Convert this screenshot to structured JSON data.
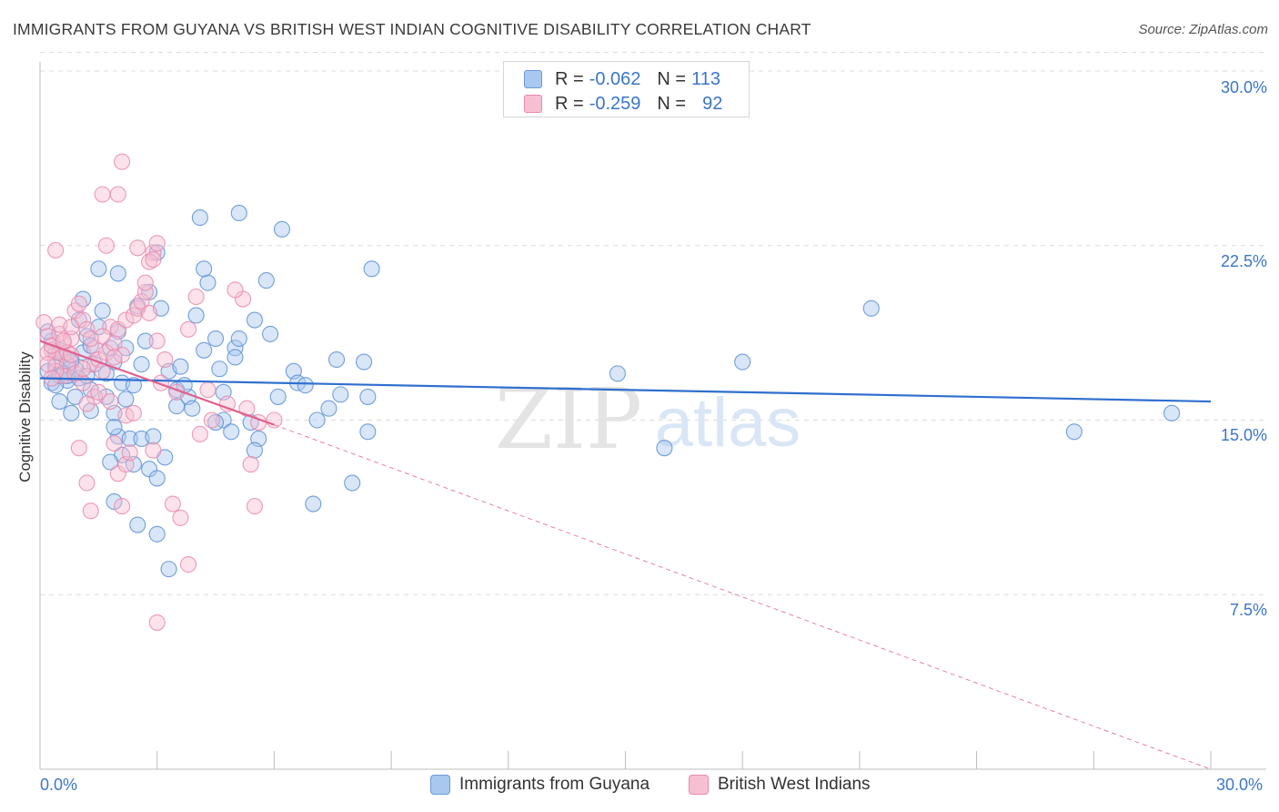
{
  "title": "IMMIGRANTS FROM GUYANA VS BRITISH WEST INDIAN COGNITIVE DISABILITY CORRELATION CHART",
  "source": "Source: ZipAtlas.com",
  "watermark": {
    "zip": "ZIP",
    "atlas": "atlas"
  },
  "legend": {
    "r_label": "R =",
    "n_label": "N =",
    "rows": [
      {
        "r": "-0.062",
        "n": "113",
        "color": "#a8c8f0",
        "border": "#6a9ad8"
      },
      {
        "r": "-0.259",
        "n": "92",
        "color": "#f7bfd2",
        "border": "#e88aab"
      }
    ]
  },
  "bottom_legend": [
    {
      "label": "Immigrants from Guyana",
      "color": "#a8c8f0",
      "border": "#6a9ad8"
    },
    {
      "label": "British West Indians",
      "color": "#f7bfd2",
      "border": "#e88aab"
    }
  ],
  "axes": {
    "ylabel": "Cognitive Disability",
    "y_ticks": [
      "30.0%",
      "22.5%",
      "15.0%",
      "7.5%"
    ],
    "x_min_label": "0.0%",
    "x_max_label": "30.0%"
  },
  "chart_data": {
    "type": "scatter",
    "title": "IMMIGRANTS FROM GUYANA VS BRITISH WEST INDIAN COGNITIVE DISABILITY CORRELATION CHART",
    "xlabel": "",
    "ylabel": "Cognitive Disability",
    "xlim": [
      0,
      30
    ],
    "ylim": [
      0,
      30
    ],
    "y_ticks": [
      7.5,
      15.0,
      22.5,
      30.0
    ],
    "colors": {
      "blue_fill": "#a8c8f0",
      "blue_stroke": "#5b8fd6",
      "blue_line": "#2f6fcf",
      "pink_fill": "#f7bfd2",
      "pink_stroke": "#e98aac",
      "pink_line": "#e0608d"
    },
    "series": [
      {
        "name": "Immigrants from Guyana",
        "r": -0.062,
        "n": 113,
        "trend": {
          "x": [
            0,
            30
          ],
          "y": [
            16.8,
            15.8
          ]
        },
        "points": [
          [
            0.2,
            17.1
          ],
          [
            0.3,
            16.6
          ],
          [
            0.4,
            17.3
          ],
          [
            0.5,
            16.9
          ],
          [
            0.6,
            17.0
          ],
          [
            0.7,
            16.7
          ],
          [
            0.3,
            18.4
          ],
          [
            0.5,
            18.0
          ],
          [
            0.8,
            17.6
          ],
          [
            0.4,
            16.5
          ],
          [
            0.6,
            17.8
          ],
          [
            0.9,
            17.2
          ],
          [
            0.7,
            16.9
          ],
          [
            0.5,
            15.8
          ],
          [
            0.8,
            15.3
          ],
          [
            1.0,
            16.8
          ],
          [
            1.1,
            17.9
          ],
          [
            1.2,
            18.6
          ],
          [
            1.3,
            16.3
          ],
          [
            1.0,
            19.3
          ],
          [
            1.4,
            17.4
          ],
          [
            1.5,
            19.0
          ],
          [
            1.1,
            20.2
          ],
          [
            1.5,
            21.5
          ],
          [
            1.7,
            17.0
          ],
          [
            1.8,
            18.1
          ],
          [
            1.6,
            19.7
          ],
          [
            2.0,
            18.8
          ],
          [
            1.9,
            17.5
          ],
          [
            2.1,
            16.6
          ],
          [
            2.2,
            18.1
          ],
          [
            2.5,
            19.9
          ],
          [
            2.8,
            20.5
          ],
          [
            2.7,
            18.4
          ],
          [
            2.4,
            16.5
          ],
          [
            1.3,
            15.4
          ],
          [
            1.7,
            16.0
          ],
          [
            1.9,
            15.3
          ],
          [
            2.0,
            14.3
          ],
          [
            1.9,
            14.7
          ],
          [
            2.3,
            14.2
          ],
          [
            2.6,
            14.2
          ],
          [
            2.8,
            12.9
          ],
          [
            3.2,
            13.4
          ],
          [
            3.0,
            12.5
          ],
          [
            3.3,
            17.1
          ],
          [
            3.5,
            16.3
          ],
          [
            3.6,
            17.3
          ],
          [
            3.8,
            16.0
          ],
          [
            3.9,
            15.5
          ],
          [
            3.1,
            19.8
          ],
          [
            4.0,
            19.5
          ],
          [
            4.2,
            18.0
          ],
          [
            4.5,
            18.5
          ],
          [
            4.6,
            17.2
          ],
          [
            4.3,
            20.9
          ],
          [
            4.1,
            23.7
          ],
          [
            4.2,
            21.5
          ],
          [
            3.0,
            22.2
          ],
          [
            2.0,
            21.3
          ],
          [
            5.0,
            18.1
          ],
          [
            5.1,
            18.5
          ],
          [
            5.5,
            19.3
          ],
          [
            5.9,
            18.7
          ],
          [
            5.8,
            21.0
          ],
          [
            5.1,
            23.9
          ],
          [
            6.2,
            23.2
          ],
          [
            5.0,
            17.7
          ],
          [
            4.7,
            15.0
          ],
          [
            4.5,
            14.9
          ],
          [
            4.9,
            14.5
          ],
          [
            5.4,
            14.9
          ],
          [
            5.6,
            14.2
          ],
          [
            6.1,
            16.0
          ],
          [
            6.5,
            17.1
          ],
          [
            6.6,
            16.6
          ],
          [
            6.8,
            16.5
          ],
          [
            7.4,
            15.5
          ],
          [
            7.6,
            17.6
          ],
          [
            7.7,
            16.1
          ],
          [
            8.3,
            17.5
          ],
          [
            8.4,
            16.0
          ],
          [
            8.4,
            14.5
          ],
          [
            8.0,
            12.3
          ],
          [
            7.0,
            11.4
          ],
          [
            7.1,
            15.0
          ],
          [
            3.5,
            15.6
          ],
          [
            4.7,
            16.2
          ],
          [
            5.5,
            13.7
          ],
          [
            1.9,
            11.5
          ],
          [
            2.5,
            10.5
          ],
          [
            3.0,
            10.1
          ],
          [
            3.3,
            8.6
          ],
          [
            2.9,
            14.3
          ],
          [
            3.7,
            16.5
          ],
          [
            2.4,
            13.1
          ],
          [
            2.1,
            13.5
          ],
          [
            1.8,
            13.2
          ],
          [
            0.8,
            17.5
          ],
          [
            1.2,
            16.9
          ],
          [
            2.6,
            17.4
          ],
          [
            8.5,
            21.5
          ],
          [
            14.8,
            17.0
          ],
          [
            16.0,
            13.8
          ],
          [
            18.0,
            17.5
          ],
          [
            21.3,
            19.8
          ],
          [
            26.5,
            14.5
          ],
          [
            29.0,
            15.3
          ],
          [
            0.2,
            18.8
          ],
          [
            0.4,
            17.9
          ],
          [
            0.9,
            16.0
          ],
          [
            1.3,
            18.2
          ],
          [
            2.2,
            15.9
          ]
        ]
      },
      {
        "name": "British West Indians",
        "r": -0.259,
        "n": 92,
        "trend": {
          "x": [
            0,
            6
          ],
          "y": [
            18.4,
            14.8
          ]
        },
        "trend_dashed": {
          "x": [
            6,
            30
          ],
          "y": [
            14.8,
            0.0
          ]
        },
        "points": [
          [
            0.1,
            19.2
          ],
          [
            0.2,
            18.6
          ],
          [
            0.3,
            18.0
          ],
          [
            0.4,
            17.6
          ],
          [
            0.5,
            17.9
          ],
          [
            0.6,
            18.3
          ],
          [
            0.7,
            17.4
          ],
          [
            0.2,
            17.9
          ],
          [
            0.3,
            18.2
          ],
          [
            0.5,
            18.7
          ],
          [
            0.6,
            16.9
          ],
          [
            0.8,
            18.5
          ],
          [
            0.9,
            19.7
          ],
          [
            1.0,
            20.0
          ],
          [
            1.1,
            19.3
          ],
          [
            1.2,
            18.9
          ],
          [
            1.3,
            17.4
          ],
          [
            0.7,
            17.9
          ],
          [
            0.4,
            17.1
          ],
          [
            0.8,
            17.8
          ],
          [
            1.4,
            18.1
          ],
          [
            1.5,
            17.6
          ],
          [
            1.6,
            17.1
          ],
          [
            1.7,
            17.9
          ],
          [
            1.8,
            19.0
          ],
          [
            1.9,
            18.3
          ],
          [
            2.0,
            18.9
          ],
          [
            2.1,
            17.8
          ],
          [
            2.2,
            19.3
          ],
          [
            2.4,
            19.5
          ],
          [
            2.5,
            19.8
          ],
          [
            2.6,
            20.1
          ],
          [
            2.7,
            20.5
          ],
          [
            2.8,
            19.6
          ],
          [
            3.0,
            18.4
          ],
          [
            3.2,
            17.6
          ],
          [
            0.4,
            22.3
          ],
          [
            1.7,
            22.5
          ],
          [
            2.5,
            22.4
          ],
          [
            2.9,
            22.2
          ],
          [
            3.0,
            22.6
          ],
          [
            2.8,
            21.8
          ],
          [
            1.6,
            24.7
          ],
          [
            2.0,
            24.7
          ],
          [
            2.1,
            26.1
          ],
          [
            2.9,
            21.9
          ],
          [
            2.7,
            20.9
          ],
          [
            3.1,
            16.6
          ],
          [
            3.5,
            16.2
          ],
          [
            3.8,
            18.9
          ],
          [
            4.0,
            20.3
          ],
          [
            4.3,
            16.3
          ],
          [
            4.1,
            14.4
          ],
          [
            4.8,
            15.7
          ],
          [
            5.2,
            20.2
          ],
          [
            5.0,
            20.6
          ],
          [
            5.3,
            15.5
          ],
          [
            5.4,
            13.1
          ],
          [
            5.6,
            14.9
          ],
          [
            6.0,
            15.0
          ],
          [
            5.5,
            11.3
          ],
          [
            3.4,
            11.4
          ],
          [
            3.6,
            10.8
          ],
          [
            3.8,
            8.8
          ],
          [
            1.3,
            11.1
          ],
          [
            1.2,
            12.3
          ],
          [
            2.0,
            12.7
          ],
          [
            2.2,
            13.1
          ],
          [
            2.3,
            13.6
          ],
          [
            2.1,
            11.3
          ],
          [
            1.0,
            13.8
          ],
          [
            1.4,
            16.0
          ],
          [
            1.8,
            15.8
          ],
          [
            1.5,
            16.2
          ],
          [
            1.9,
            14.0
          ],
          [
            2.2,
            15.2
          ],
          [
            1.2,
            15.7
          ],
          [
            1.1,
            16.6
          ],
          [
            0.9,
            17.0
          ],
          [
            0.6,
            18.4
          ],
          [
            1.6,
            18.6
          ],
          [
            1.9,
            17.7
          ],
          [
            1.3,
            18.5
          ],
          [
            0.3,
            16.8
          ],
          [
            0.2,
            17.4
          ],
          [
            2.9,
            13.7
          ],
          [
            3.0,
            6.3
          ],
          [
            2.4,
            15.3
          ],
          [
            4.4,
            15.0
          ],
          [
            0.5,
            19.1
          ],
          [
            0.8,
            19.0
          ],
          [
            1.1,
            17.2
          ]
        ]
      }
    ]
  }
}
